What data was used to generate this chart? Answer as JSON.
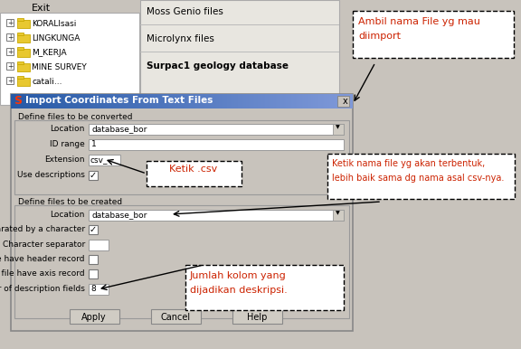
{
  "bg_color": "#c8c3bc",
  "white": "#ffffff",
  "dialog_bg": "#c8c3bc",
  "field_bg": "#ffffff",
  "tree_bg": "#ffffff",
  "menu_bg": "#e8e6e0",
  "title_blue": "#4a7ab5",
  "annotation_text_red": "#cc2200",
  "annotation_text_green": "#007700",
  "folder_yellow": "#e8c830",
  "folder_border": "#c8a800",
  "btn_bg": "#d0ccc4",
  "top_panel_items": [
    "Moss Genio files",
    "Microlynx files",
    "Surpac1 geology database"
  ],
  "tree_items": [
    "KORALIsasi",
    "LINGKUNGA",
    "M_KERJA",
    "MINE SURVEY"
  ],
  "dialog_title": "Import Coordinates From Text Files",
  "location_val": "database_bor",
  "id_range_val": "1",
  "extension_val": "csv_",
  "location2_val": "database_bor",
  "annotation1_text": "Ambil nama File yg mau\ndiimport",
  "annotation2_text": "Ketik .csv",
  "annotation3_text": "Ketik nama file yg akan terbentuk,\nlebih baik sama dg nama asal csv-nya.",
  "annotation4_text": "Jumlah kolom yang\ndijadikan deskripsi.",
  "buttons": [
    "Apply",
    "Cancel",
    "Help"
  ],
  "fig_width": 5.76,
  "fig_height": 3.86,
  "dpi": 100
}
